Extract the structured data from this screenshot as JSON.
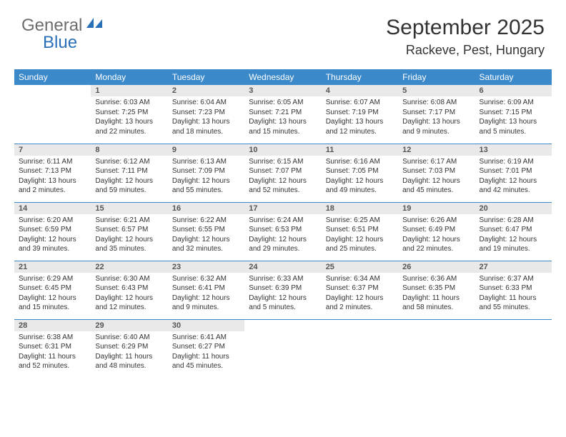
{
  "brand": {
    "part1": "General",
    "part2": "Blue"
  },
  "title": "September 2025",
  "location": "Rackeve, Pest, Hungary",
  "colors": {
    "header_bg": "#3b89c9",
    "header_text": "#ffffff",
    "daynum_bg": "#e9e9e9",
    "brand_gray": "#6d6d6d",
    "brand_blue": "#2970b8",
    "rule": "#3b89c9",
    "body_text": "#333333",
    "page_bg": "#ffffff"
  },
  "typography": {
    "title_fontsize": 30,
    "location_fontsize": 18,
    "header_fontsize": 12,
    "daynum_fontsize": 11,
    "daydata_fontsize": 10,
    "logo_fontsize": 24
  },
  "weekdays": [
    "Sunday",
    "Monday",
    "Tuesday",
    "Wednesday",
    "Thursday",
    "Friday",
    "Saturday"
  ],
  "weeks": [
    [
      null,
      {
        "n": "1",
        "sr": "6:03 AM",
        "ss": "7:25 PM",
        "dl": "13 hours and 22 minutes."
      },
      {
        "n": "2",
        "sr": "6:04 AM",
        "ss": "7:23 PM",
        "dl": "13 hours and 18 minutes."
      },
      {
        "n": "3",
        "sr": "6:05 AM",
        "ss": "7:21 PM",
        "dl": "13 hours and 15 minutes."
      },
      {
        "n": "4",
        "sr": "6:07 AM",
        "ss": "7:19 PM",
        "dl": "13 hours and 12 minutes."
      },
      {
        "n": "5",
        "sr": "6:08 AM",
        "ss": "7:17 PM",
        "dl": "13 hours and 9 minutes."
      },
      {
        "n": "6",
        "sr": "6:09 AM",
        "ss": "7:15 PM",
        "dl": "13 hours and 5 minutes."
      }
    ],
    [
      {
        "n": "7",
        "sr": "6:11 AM",
        "ss": "7:13 PM",
        "dl": "13 hours and 2 minutes."
      },
      {
        "n": "8",
        "sr": "6:12 AM",
        "ss": "7:11 PM",
        "dl": "12 hours and 59 minutes."
      },
      {
        "n": "9",
        "sr": "6:13 AM",
        "ss": "7:09 PM",
        "dl": "12 hours and 55 minutes."
      },
      {
        "n": "10",
        "sr": "6:15 AM",
        "ss": "7:07 PM",
        "dl": "12 hours and 52 minutes."
      },
      {
        "n": "11",
        "sr": "6:16 AM",
        "ss": "7:05 PM",
        "dl": "12 hours and 49 minutes."
      },
      {
        "n": "12",
        "sr": "6:17 AM",
        "ss": "7:03 PM",
        "dl": "12 hours and 45 minutes."
      },
      {
        "n": "13",
        "sr": "6:19 AM",
        "ss": "7:01 PM",
        "dl": "12 hours and 42 minutes."
      }
    ],
    [
      {
        "n": "14",
        "sr": "6:20 AM",
        "ss": "6:59 PM",
        "dl": "12 hours and 39 minutes."
      },
      {
        "n": "15",
        "sr": "6:21 AM",
        "ss": "6:57 PM",
        "dl": "12 hours and 35 minutes."
      },
      {
        "n": "16",
        "sr": "6:22 AM",
        "ss": "6:55 PM",
        "dl": "12 hours and 32 minutes."
      },
      {
        "n": "17",
        "sr": "6:24 AM",
        "ss": "6:53 PM",
        "dl": "12 hours and 29 minutes."
      },
      {
        "n": "18",
        "sr": "6:25 AM",
        "ss": "6:51 PM",
        "dl": "12 hours and 25 minutes."
      },
      {
        "n": "19",
        "sr": "6:26 AM",
        "ss": "6:49 PM",
        "dl": "12 hours and 22 minutes."
      },
      {
        "n": "20",
        "sr": "6:28 AM",
        "ss": "6:47 PM",
        "dl": "12 hours and 19 minutes."
      }
    ],
    [
      {
        "n": "21",
        "sr": "6:29 AM",
        "ss": "6:45 PM",
        "dl": "12 hours and 15 minutes."
      },
      {
        "n": "22",
        "sr": "6:30 AM",
        "ss": "6:43 PM",
        "dl": "12 hours and 12 minutes."
      },
      {
        "n": "23",
        "sr": "6:32 AM",
        "ss": "6:41 PM",
        "dl": "12 hours and 9 minutes."
      },
      {
        "n": "24",
        "sr": "6:33 AM",
        "ss": "6:39 PM",
        "dl": "12 hours and 5 minutes."
      },
      {
        "n": "25",
        "sr": "6:34 AM",
        "ss": "6:37 PM",
        "dl": "12 hours and 2 minutes."
      },
      {
        "n": "26",
        "sr": "6:36 AM",
        "ss": "6:35 PM",
        "dl": "11 hours and 58 minutes."
      },
      {
        "n": "27",
        "sr": "6:37 AM",
        "ss": "6:33 PM",
        "dl": "11 hours and 55 minutes."
      }
    ],
    [
      {
        "n": "28",
        "sr": "6:38 AM",
        "ss": "6:31 PM",
        "dl": "11 hours and 52 minutes."
      },
      {
        "n": "29",
        "sr": "6:40 AM",
        "ss": "6:29 PM",
        "dl": "11 hours and 48 minutes."
      },
      {
        "n": "30",
        "sr": "6:41 AM",
        "ss": "6:27 PM",
        "dl": "11 hours and 45 minutes."
      },
      null,
      null,
      null,
      null
    ]
  ],
  "labels": {
    "sunrise": "Sunrise:",
    "sunset": "Sunset:",
    "daylight": "Daylight:"
  }
}
